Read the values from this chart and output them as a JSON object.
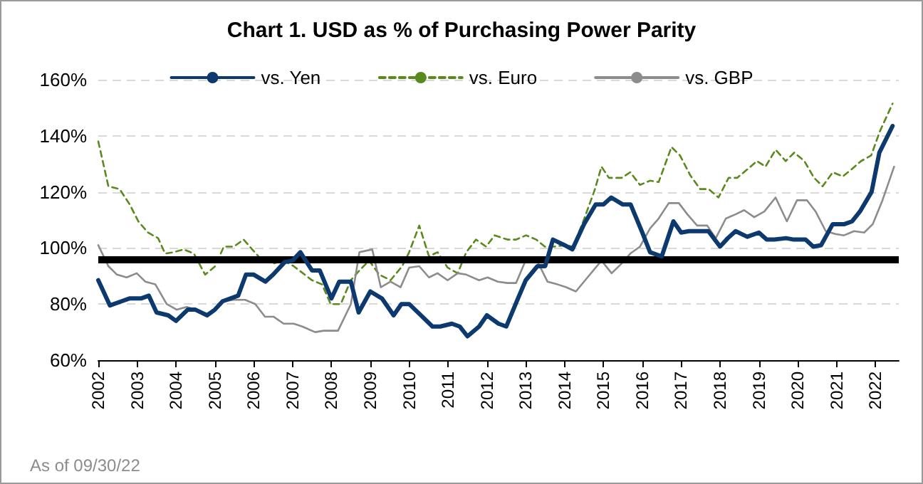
{
  "chart_data": {
    "type": "line",
    "title": "Chart 1. USD as % of Purchasing Power Parity",
    "annotations": [
      "As of 09/30/22"
    ],
    "xlim": [
      2002,
      2022.6
    ],
    "xticks": [
      2002,
      2003,
      2004,
      2005,
      2006,
      2007,
      2008,
      2009,
      2010,
      2011,
      2012,
      2013,
      2014,
      2015,
      2016,
      2017,
      2018,
      2019,
      2020,
      2021,
      2022
    ],
    "ylim": [
      60,
      160
    ],
    "yticks": [
      {
        "value": 60,
        "label": "60%"
      },
      {
        "value": 80,
        "label": "80%"
      },
      {
        "value": 100,
        "label": "100%"
      },
      {
        "value": 120,
        "label": "120%"
      },
      {
        "value": 140,
        "label": "140%"
      },
      {
        "value": 160,
        "label": "160%"
      }
    ],
    "grid": "y",
    "legend": "top",
    "marker": "none",
    "ref_lines": [
      {
        "axis": "y",
        "value": 96,
        "label": null,
        "color": "#000000"
      }
    ],
    "series": [
      {
        "name": "vs. Yen",
        "color": "#0d3a6e",
        "line_style": "solid",
        "x": [
          2002,
          2002.3,
          2002.6,
          2002.8,
          2003.1,
          2003.3,
          2003.5,
          2003.8,
          2004,
          2004.3,
          2004.5,
          2004.8,
          2005,
          2005.2,
          2005.6,
          2005.8,
          2006,
          2006.3,
          2006.5,
          2006.8,
          2007,
          2007.2,
          2007.5,
          2007.7,
          2008,
          2008.2,
          2008.5,
          2008.7,
          2009,
          2009.3,
          2009.6,
          2009.8,
          2010,
          2010.3,
          2010.6,
          2010.8,
          2011.1,
          2011.3,
          2011.5,
          2011.8,
          2012,
          2012.3,
          2012.5,
          2012.8,
          2013,
          2013.3,
          2013.5,
          2013.7,
          2014,
          2014.2,
          2014.5,
          2014.8,
          2015,
          2015.2,
          2015.5,
          2015.7,
          2016,
          2016.2,
          2016.5,
          2016.8,
          2017,
          2017.2,
          2017.5,
          2017.7,
          2018,
          2018.2,
          2018.4,
          2018.7,
          2019,
          2019.2,
          2019.4,
          2019.7,
          2019.9,
          2020.2,
          2020.4,
          2020.6,
          2020.9,
          2021.2,
          2021.4,
          2021.6,
          2021.9,
          2022.1,
          2022.44
        ],
        "values": [
          88.5,
          79.5,
          81,
          82,
          82,
          83,
          77,
          76,
          74,
          78,
          78,
          76,
          78,
          81,
          83,
          90.5,
          90.5,
          88,
          90.5,
          95,
          95.5,
          98.5,
          92,
          92,
          82,
          88,
          88,
          77,
          84.5,
          82,
          76,
          80,
          80,
          76,
          72,
          72,
          73,
          72,
          68.5,
          72,
          76,
          73,
          72,
          82,
          88.5,
          93.5,
          93.5,
          103,
          101,
          99.5,
          108.5,
          115.5,
          115.5,
          118,
          115.5,
          115.5,
          105.5,
          98.5,
          97,
          109.5,
          105.5,
          106,
          106,
          106,
          100.5,
          103.5,
          106,
          104,
          105.5,
          103,
          103,
          103.5,
          103,
          103,
          100.5,
          101,
          108.5,
          108.5,
          109.5,
          113,
          120,
          134,
          143.5
        ]
      },
      {
        "name": "vs. Euro",
        "color": "#5a8a1e",
        "line_style": "dashed",
        "x": [
          2002,
          2002.26,
          2002.55,
          2002.81,
          2003.03,
          2003.28,
          2003.54,
          2003.72,
          2003.94,
          2004.2,
          2004.46,
          2004.75,
          2005.01,
          2005.23,
          2005.49,
          2005.74,
          2005.96,
          2006.22,
          2006.51,
          2006.77,
          2007.03,
          2007.5,
          2007.76,
          2007.98,
          2008.24,
          2008.5,
          2008.72,
          2008.97,
          2009.23,
          2009.52,
          2009.82,
          2010,
          2010.26,
          2010.51,
          2010.73,
          2010.99,
          2011.25,
          2011.47,
          2011.72,
          2011.98,
          2012.2,
          2012.53,
          2012.75,
          2013.01,
          2013.27,
          2013.49,
          2013.74,
          2014,
          2014.22,
          2014.48,
          2014.77,
          2014.95,
          2015.14,
          2015.47,
          2015.69,
          2015.94,
          2016.2,
          2016.42,
          2016.75,
          2016.97,
          2017.23,
          2017.49,
          2017.71,
          2017.96,
          2018.22,
          2018.44,
          2018.7,
          2018.95,
          2019.17,
          2019.43,
          2019.69,
          2019.91,
          2020.17,
          2020.42,
          2020.64,
          2020.9,
          2021.16,
          2021.38,
          2021.63,
          2021.89,
          2022.11,
          2022.44
        ],
        "values": [
          138,
          122,
          121,
          115.5,
          109.5,
          105.5,
          103.5,
          98,
          98.5,
          99.5,
          98,
          90.5,
          93.5,
          100.5,
          100.5,
          103,
          99.5,
          95.5,
          94.5,
          95.5,
          93.5,
          88.5,
          87,
          80,
          80,
          88.5,
          92,
          95.5,
          90.5,
          88.5,
          93.5,
          98.5,
          108,
          97,
          98.5,
          93,
          91,
          98.5,
          103,
          100.5,
          104.5,
          103,
          103,
          104.5,
          103,
          100.5,
          100.5,
          101,
          100.5,
          109.5,
          120.5,
          129,
          125,
          125,
          127,
          122.5,
          124,
          123.5,
          136,
          133,
          126,
          121,
          121,
          118,
          125,
          125,
          128,
          131,
          129,
          135,
          131,
          134,
          131,
          125,
          122,
          127,
          125.5,
          128,
          131,
          133,
          141.5,
          151.5
        ]
      },
      {
        "name": "vs. GBP",
        "color": "#8c8c8c",
        "line_style": "solid",
        "x": [
          2002,
          2002.26,
          2002.48,
          2002.73,
          2002.99,
          2003.21,
          2003.47,
          2003.76,
          2004.02,
          2004.28,
          2004.5,
          2004.75,
          2005.01,
          2005.23,
          2005.49,
          2005.78,
          2006.04,
          2006.29,
          2006.51,
          2006.77,
          2007.03,
          2007.25,
          2007.58,
          2007.8,
          2008.17,
          2008.5,
          2008.72,
          2009.05,
          2009.27,
          2009.52,
          2009.78,
          2010,
          2010.26,
          2010.51,
          2010.73,
          2010.99,
          2011.25,
          2011.47,
          2011.8,
          2012.02,
          2012.28,
          2012.53,
          2012.75,
          2013.01,
          2013.27,
          2013.56,
          2013.82,
          2014.04,
          2014.29,
          2014.59,
          2014.95,
          2015.21,
          2015.47,
          2015.69,
          2015.94,
          2016.2,
          2016.42,
          2016.68,
          2016.94,
          2017.16,
          2017.41,
          2017.67,
          2017.89,
          2018.15,
          2018.4,
          2018.62,
          2018.88,
          2019.14,
          2019.43,
          2019.72,
          2019.98,
          2020.24,
          2020.46,
          2020.72,
          2020.97,
          2021.19,
          2021.45,
          2021.71,
          2021.93,
          2022.18,
          2022.48
        ],
        "values": [
          101,
          93.5,
          90.5,
          89.5,
          91,
          88,
          87,
          80,
          78,
          79,
          78,
          76,
          78,
          81,
          81.5,
          81.5,
          80,
          75.5,
          75.5,
          73,
          73,
          72,
          70,
          70.5,
          70.5,
          80,
          98.5,
          99.5,
          86,
          88,
          86,
          93,
          93.5,
          89.5,
          91,
          88.5,
          91,
          90.5,
          88.5,
          89.5,
          88,
          87.5,
          87.5,
          96,
          96,
          88,
          87,
          86,
          84.5,
          89.5,
          95.5,
          91,
          94.5,
          98,
          100.5,
          107,
          110.5,
          116,
          116,
          112,
          108,
          108,
          103.5,
          110.5,
          112,
          113.5,
          111,
          113,
          118,
          109.5,
          117,
          117,
          113,
          106,
          105,
          104.5,
          106,
          105.5,
          108.5,
          117,
          129
        ]
      }
    ]
  }
}
